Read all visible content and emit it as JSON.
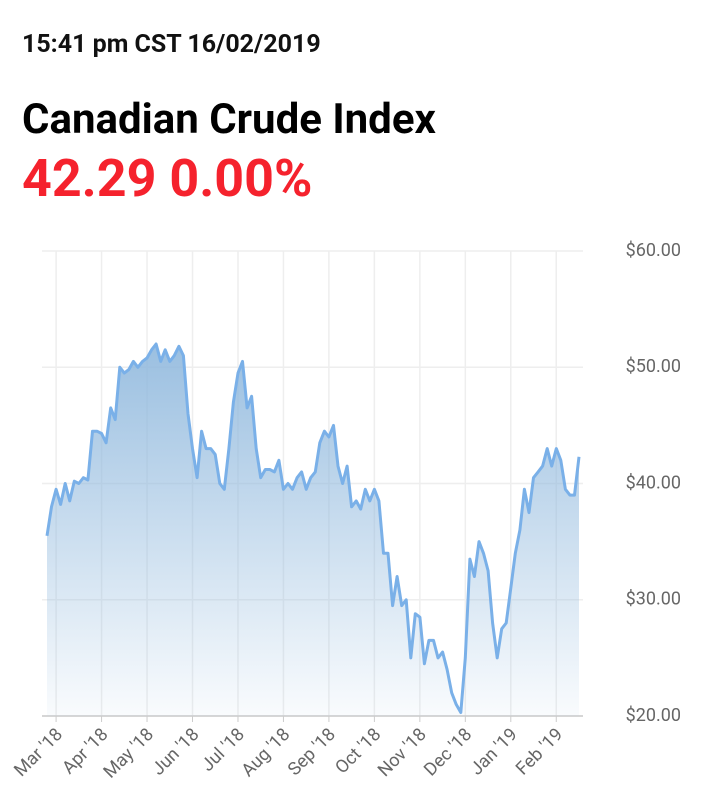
{
  "header": {
    "timestamp": "15:41 pm CST 16/02/2019",
    "title": "Canadian Crude Index",
    "price": "42.29",
    "change": "0.00%"
  },
  "chart_data": {
    "type": "area",
    "color": "#7ab0e8",
    "grid": true,
    "categories": [
      null,
      null,
      "Mar '18",
      null,
      null,
      null,
      null,
      null,
      null,
      null,
      null,
      null,
      "Apr '18",
      null,
      null,
      null,
      null,
      null,
      null,
      null,
      null,
      null,
      "May '18",
      null,
      null,
      null,
      null,
      null,
      null,
      null,
      null,
      null,
      "Jun '18",
      null,
      null,
      null,
      null,
      null,
      null,
      null,
      null,
      null,
      "Jul '18",
      null,
      null,
      null,
      null,
      null,
      null,
      null,
      null,
      null,
      "Aug '18",
      null,
      null,
      null,
      null,
      null,
      null,
      null,
      null,
      null,
      "Sep '18",
      null,
      null,
      null,
      null,
      null,
      null,
      null,
      null,
      null,
      "Oct '18",
      null,
      null,
      null,
      null,
      null,
      null,
      null,
      null,
      null,
      "Nov '18",
      null,
      null,
      null,
      null,
      null,
      null,
      null,
      null,
      null,
      "Dec '18",
      null,
      null,
      null,
      null,
      null,
      null,
      null,
      null,
      null,
      "Jan '19",
      null,
      null,
      null,
      null,
      null,
      null,
      null,
      null,
      null,
      "Feb '19",
      null,
      null,
      null,
      null,
      null
    ],
    "values": [
      35.5,
      38,
      39.5,
      38.2,
      40,
      38.5,
      40.2,
      40,
      40.5,
      40.3,
      44.5,
      44.5,
      44.3,
      43.5,
      46.5,
      45.5,
      50,
      49.5,
      49.8,
      50.5,
      50,
      50.5,
      50.8,
      51.5,
      52,
      50.5,
      51.5,
      50.5,
      51,
      51.8,
      51,
      46,
      43,
      40.5,
      44.5,
      43,
      43,
      42.5,
      40,
      39.5,
      43,
      47,
      49.5,
      50.5,
      46.5,
      47.5,
      43,
      40.5,
      41.2,
      41.2,
      41,
      42,
      39.5,
      40,
      39.5,
      40.5,
      41,
      39.5,
      40.5,
      41,
      43.5,
      44.5,
      44,
      45,
      41.5,
      40,
      41.5,
      38,
      38.5,
      37.8,
      39.5,
      38.5,
      39.5,
      38.5,
      34,
      34,
      29.5,
      32,
      29.5,
      30,
      25,
      28.8,
      28.5,
      24.5,
      26.5,
      26.5,
      25,
      25.5,
      24,
      22,
      21,
      20.3,
      25,
      33.5,
      32,
      35,
      34,
      32.5,
      28,
      25,
      27.5,
      28,
      31,
      34,
      36,
      39.5,
      37.5,
      40.5,
      41,
      41.5,
      43,
      41.5,
      43,
      42,
      39.5,
      39,
      39,
      42.3
    ],
    "ylim": [
      20,
      60
    ],
    "yticks": [
      {
        "value": 20,
        "label": "$20.00"
      },
      {
        "value": 30,
        "label": "$30.00"
      },
      {
        "value": 40,
        "label": "$40.00"
      },
      {
        "value": 50,
        "label": "$50.00"
      },
      {
        "value": 60,
        "label": "$60.00"
      }
    ]
  }
}
